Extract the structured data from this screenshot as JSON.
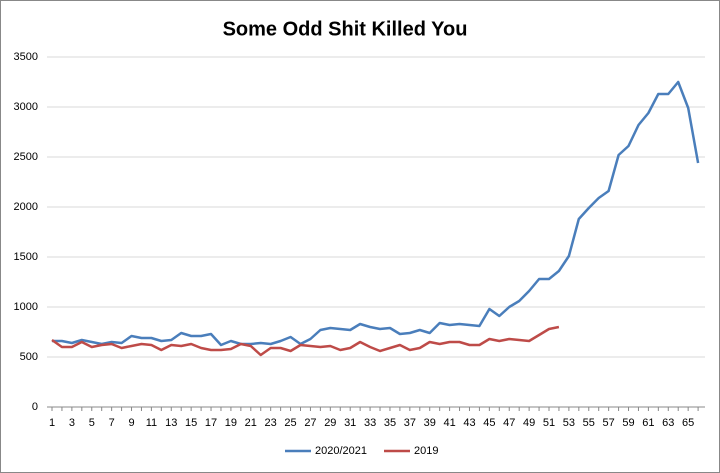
{
  "chart_data": {
    "type": "line",
    "title": "Some Odd Shit Killed You",
    "categories": [
      1,
      null,
      3,
      null,
      5,
      null,
      7,
      null,
      9,
      null,
      11,
      null,
      13,
      null,
      15,
      null,
      17,
      null,
      19,
      null,
      21,
      null,
      23,
      null,
      25,
      null,
      27,
      null,
      29,
      null,
      31,
      null,
      33,
      null,
      35,
      null,
      37,
      null,
      39,
      null,
      41,
      null,
      43,
      null,
      45,
      null,
      47,
      null,
      49,
      null,
      51,
      null,
      53,
      null,
      55,
      null,
      57,
      null,
      59,
      null,
      61,
      null,
      63,
      null,
      65,
      null
    ],
    "series": [
      {
        "name": "2020/2021",
        "color": "#4a7ebb",
        "values": [
          660,
          660,
          640,
          670,
          650,
          630,
          650,
          640,
          710,
          690,
          690,
          660,
          670,
          740,
          710,
          710,
          730,
          620,
          660,
          630,
          630,
          640,
          630,
          660,
          700,
          630,
          680,
          770,
          790,
          780,
          770,
          830,
          800,
          780,
          790,
          730,
          740,
          770,
          740,
          840,
          820,
          830,
          820,
          810,
          980,
          910,
          1000,
          1060,
          1160,
          1280,
          1280,
          1360,
          1510,
          1880,
          1990,
          2090,
          2160,
          2520,
          2610,
          2820,
          2940,
          3130,
          3130,
          3250,
          2990,
          2440
        ]
      },
      {
        "name": "2019",
        "color": "#be4b48",
        "values": [
          670,
          600,
          600,
          650,
          600,
          620,
          630,
          590,
          610,
          630,
          620,
          570,
          620,
          610,
          630,
          590,
          570,
          570,
          580,
          630,
          610,
          520,
          590,
          590,
          560,
          620,
          610,
          600,
          610,
          570,
          590,
          650,
          600,
          560,
          590,
          620,
          570,
          590,
          650,
          630,
          650,
          650,
          620,
          620,
          680,
          660,
          680,
          670,
          660,
          720,
          780,
          800,
          null,
          null,
          null,
          null,
          null,
          null,
          null,
          null,
          null,
          null,
          null,
          null,
          null,
          null
        ]
      }
    ],
    "ylim": [
      0,
      3500
    ],
    "yticks": [
      0,
      500,
      1000,
      1500,
      2000,
      2500,
      3000,
      3500
    ],
    "grid": true,
    "legend": "bottom"
  }
}
